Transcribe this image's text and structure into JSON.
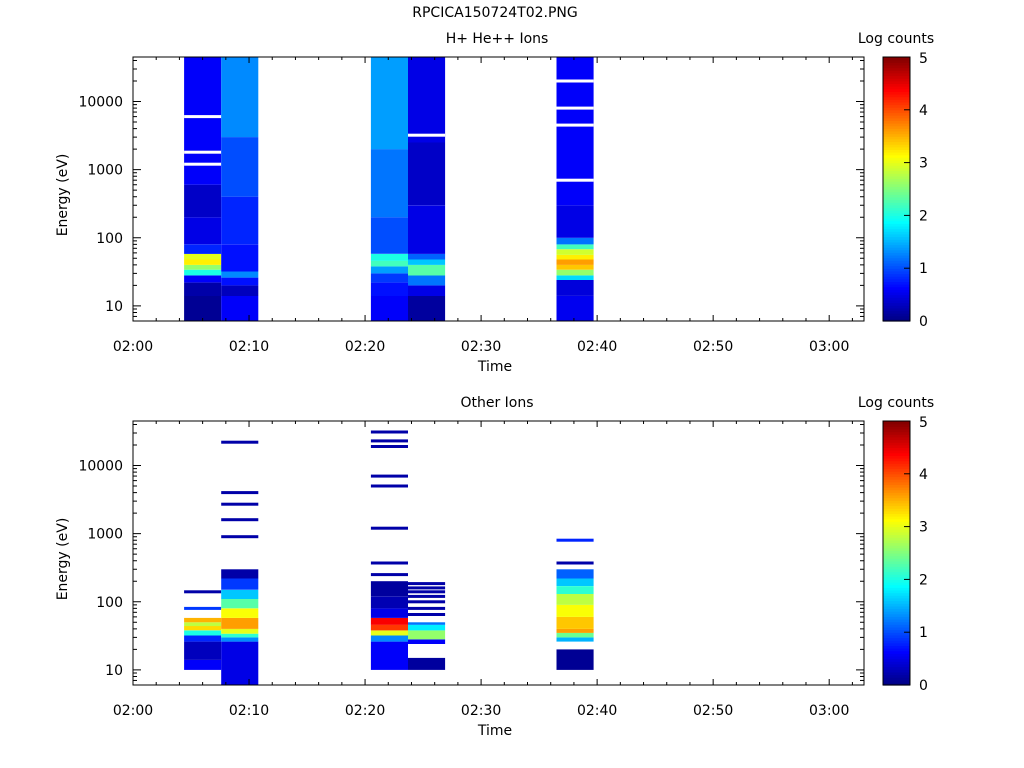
{
  "page_title": "RPCICA150724T02.PNG",
  "colorbar": {
    "label": "Log counts",
    "ticks": [
      "0",
      "1",
      "2",
      "3",
      "4",
      "5"
    ],
    "range": [
      0,
      5
    ],
    "colormap": "jet"
  },
  "chart_data": [
    {
      "type": "heatmap",
      "title": "H+ He++ Ions",
      "xlabel": "Time",
      "ylabel": "Energy (eV)",
      "y_scale": "log",
      "ylim": [
        6,
        45000
      ],
      "xlim": [
        "02:00",
        "03:03"
      ],
      "x_ticks": [
        "02:00",
        "02:10",
        "02:20",
        "02:30",
        "02:40",
        "02:50",
        "03:00"
      ],
      "y_ticks": [
        "10",
        "100",
        "1000",
        "10000"
      ],
      "columns": [
        {
          "start": "02:04.4",
          "end": "02:07.6",
          "segments": [
            {
              "from": 6,
              "to": 14,
              "v": 0.1
            },
            {
              "from": 14,
              "to": 22,
              "v": 0.2
            },
            {
              "from": 22,
              "to": 28,
              "v": 0.6
            },
            {
              "from": 28,
              "to": 34,
              "v": 2.0
            },
            {
              "from": 34,
              "to": 40,
              "v": 2.6
            },
            {
              "from": 40,
              "to": 48,
              "v": 3.2
            },
            {
              "from": 48,
              "to": 58,
              "v": 3.0
            },
            {
              "from": 58,
              "to": 80,
              "v": 0.8
            },
            {
              "from": 80,
              "to": 200,
              "v": 0.5
            },
            {
              "from": 200,
              "to": 600,
              "v": 0.35
            },
            {
              "from": 600,
              "to": 45000,
              "v": 0.6
            }
          ],
          "gaps": [
            1200,
            1800,
            6000
          ]
        },
        {
          "start": "02:07.6",
          "end": "02:10.8",
          "segments": [
            {
              "from": 6,
              "to": 14,
              "v": 0.6
            },
            {
              "from": 14,
              "to": 20,
              "v": 0.3
            },
            {
              "from": 20,
              "to": 26,
              "v": 0.7
            },
            {
              "from": 26,
              "to": 32,
              "v": 1.3
            },
            {
              "from": 32,
              "to": 80,
              "v": 0.7
            },
            {
              "from": 80,
              "to": 400,
              "v": 0.8
            },
            {
              "from": 400,
              "to": 3000,
              "v": 1.0
            },
            {
              "from": 3000,
              "to": 45000,
              "v": 1.3
            }
          ],
          "gaps": []
        },
        {
          "start": "02:20.5",
          "end": "02:23.7",
          "segments": [
            {
              "from": 6,
              "to": 14,
              "v": 0.6
            },
            {
              "from": 14,
              "to": 22,
              "v": 0.7
            },
            {
              "from": 22,
              "to": 30,
              "v": 0.9
            },
            {
              "from": 30,
              "to": 38,
              "v": 1.4
            },
            {
              "from": 38,
              "to": 46,
              "v": 2.2
            },
            {
              "from": 46,
              "to": 58,
              "v": 2.0
            },
            {
              "from": 58,
              "to": 200,
              "v": 1.0
            },
            {
              "from": 200,
              "to": 2000,
              "v": 1.2
            },
            {
              "from": 2000,
              "to": 45000,
              "v": 1.4
            }
          ],
          "gaps": []
        },
        {
          "start": "02:23.7",
          "end": "02:26.9",
          "segments": [
            {
              "from": 6,
              "to": 14,
              "v": 0.15
            },
            {
              "from": 14,
              "to": 20,
              "v": 0.5
            },
            {
              "from": 20,
              "to": 28,
              "v": 1.2
            },
            {
              "from": 28,
              "to": 40,
              "v": 2.3
            },
            {
              "from": 40,
              "to": 48,
              "v": 1.6
            },
            {
              "from": 48,
              "to": 58,
              "v": 1.1
            },
            {
              "from": 58,
              "to": 300,
              "v": 0.5
            },
            {
              "from": 300,
              "to": 2500,
              "v": 0.35
            },
            {
              "from": 2500,
              "to": 45000,
              "v": 0.5
            }
          ],
          "gaps": [
            3200
          ]
        },
        {
          "start": "02:36.5",
          "end": "02:39.7",
          "segments": [
            {
              "from": 6,
              "to": 14,
              "v": 0.55
            },
            {
              "from": 14,
              "to": 24,
              "v": 0.45
            },
            {
              "from": 24,
              "to": 28,
              "v": 1.7
            },
            {
              "from": 28,
              "to": 34,
              "v": 2.6
            },
            {
              "from": 34,
              "to": 40,
              "v": 3.4
            },
            {
              "from": 40,
              "to": 48,
              "v": 3.6
            },
            {
              "from": 48,
              "to": 56,
              "v": 3.2
            },
            {
              "from": 56,
              "to": 68,
              "v": 2.9
            },
            {
              "from": 68,
              "to": 80,
              "v": 2.2
            },
            {
              "from": 80,
              "to": 100,
              "v": 1.2
            },
            {
              "from": 100,
              "to": 300,
              "v": 0.5
            },
            {
              "from": 300,
              "to": 45000,
              "v": 0.6
            }
          ],
          "gaps": [
            700,
            4500,
            8000,
            20000
          ]
        }
      ]
    },
    {
      "type": "heatmap",
      "title": "Other Ions",
      "xlabel": "Time",
      "ylabel": "Energy (eV)",
      "y_scale": "log",
      "ylim": [
        6,
        45000
      ],
      "xlim": [
        "02:00",
        "03:03"
      ],
      "x_ticks": [
        "02:00",
        "02:10",
        "02:20",
        "02:30",
        "02:40",
        "02:50",
        "03:00"
      ],
      "y_ticks": [
        "10",
        "100",
        "1000",
        "10000"
      ],
      "columns": [
        {
          "start": "02:04.4",
          "end": "02:07.6",
          "segments": [
            {
              "from": 10,
              "to": 14,
              "v": 0.6
            },
            {
              "from": 14,
              "to": 26,
              "v": 0.3
            },
            {
              "from": 26,
              "to": 32,
              "v": 0.8
            },
            {
              "from": 32,
              "to": 38,
              "v": 2.0
            },
            {
              "from": 38,
              "to": 44,
              "v": 3.3
            },
            {
              "from": 44,
              "to": 50,
              "v": 2.8
            },
            {
              "from": 50,
              "to": 58,
              "v": 3.5
            }
          ],
          "lines": [
            {
              "e": 80,
              "v": 0.9
            },
            {
              "e": 140,
              "v": 0.2
            }
          ]
        },
        {
          "start": "02:07.6",
          "end": "02:10.8",
          "segments": [
            {
              "from": 6,
              "to": 26,
              "v": 0.5
            },
            {
              "from": 26,
              "to": 30,
              "v": 1.3
            },
            {
              "from": 30,
              "to": 34,
              "v": 2.1
            },
            {
              "from": 34,
              "to": 40,
              "v": 3.0
            },
            {
              "from": 40,
              "to": 58,
              "v": 3.6
            },
            {
              "from": 58,
              "to": 80,
              "v": 3.1
            },
            {
              "from": 80,
              "to": 110,
              "v": 2.3
            },
            {
              "from": 110,
              "to": 150,
              "v": 1.6
            },
            {
              "from": 150,
              "to": 220,
              "v": 0.9
            },
            {
              "from": 220,
              "to": 300,
              "v": 0.2
            }
          ],
          "lines": [
            {
              "e": 900,
              "v": 0.2
            },
            {
              "e": 1600,
              "v": 0.2
            },
            {
              "e": 2700,
              "v": 0.2
            },
            {
              "e": 4000,
              "v": 0.2
            },
            {
              "e": 22000,
              "v": 0.2
            }
          ]
        },
        {
          "start": "02:20.5",
          "end": "02:23.7",
          "segments": [
            {
              "from": 10,
              "to": 26,
              "v": 0.6
            },
            {
              "from": 26,
              "to": 32,
              "v": 1.3
            },
            {
              "from": 32,
              "to": 38,
              "v": 3.0
            },
            {
              "from": 38,
              "to": 46,
              "v": 4.1
            },
            {
              "from": 46,
              "to": 58,
              "v": 4.4
            },
            {
              "from": 58,
              "to": 80,
              "v": 0.5
            },
            {
              "from": 80,
              "to": 120,
              "v": 0.25
            },
            {
              "from": 120,
              "to": 200,
              "v": 0.15
            }
          ],
          "lines": [
            {
              "e": 250,
              "v": 0.2
            },
            {
              "e": 370,
              "v": 0.2
            },
            {
              "e": 1200,
              "v": 0.2
            },
            {
              "e": 5000,
              "v": 0.2
            },
            {
              "e": 7000,
              "v": 0.2
            },
            {
              "e": 19000,
              "v": 0.2
            },
            {
              "e": 23000,
              "v": 0.2
            },
            {
              "e": 31000,
              "v": 0.2
            }
          ]
        },
        {
          "start": "02:23.7",
          "end": "02:26.9",
          "segments": [
            {
              "from": 10,
              "to": 15,
              "v": 0.15
            },
            {
              "from": 24,
              "to": 28,
              "v": 0.6
            },
            {
              "from": 28,
              "to": 38,
              "v": 2.6
            },
            {
              "from": 38,
              "to": 46,
              "v": 1.8
            },
            {
              "from": 46,
              "to": 50,
              "v": 1.2
            }
          ],
          "lines": [
            {
              "e": 65,
              "v": 0.2
            },
            {
              "e": 80,
              "v": 0.2
            },
            {
              "e": 100,
              "v": 0.2
            },
            {
              "e": 120,
              "v": 0.2
            },
            {
              "e": 140,
              "v": 0.2
            },
            {
              "e": 160,
              "v": 0.2
            },
            {
              "e": 185,
              "v": 0.2
            }
          ]
        },
        {
          "start": "02:36.5",
          "end": "02:39.7",
          "segments": [
            {
              "from": 10,
              "to": 20,
              "v": 0.1
            },
            {
              "from": 26,
              "to": 30,
              "v": 1.5
            },
            {
              "from": 30,
              "to": 35,
              "v": 2.4
            },
            {
              "from": 35,
              "to": 40,
              "v": 3.6
            },
            {
              "from": 40,
              "to": 60,
              "v": 3.4
            },
            {
              "from": 60,
              "to": 90,
              "v": 3.1
            },
            {
              "from": 90,
              "to": 130,
              "v": 2.8
            },
            {
              "from": 130,
              "to": 170,
              "v": 2.1
            },
            {
              "from": 170,
              "to": 220,
              "v": 1.6
            },
            {
              "from": 220,
              "to": 300,
              "v": 1.1
            }
          ],
          "lines": [
            {
              "e": 370,
              "v": 0.2
            },
            {
              "e": 800,
              "v": 0.8
            }
          ]
        }
      ]
    }
  ]
}
